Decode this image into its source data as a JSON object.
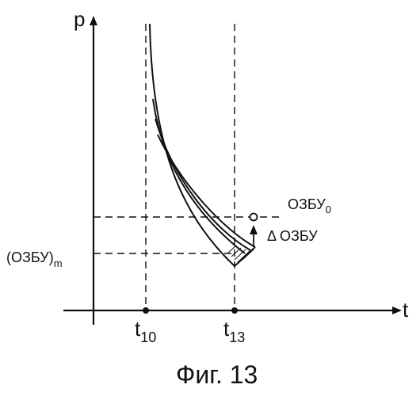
{
  "figure": {
    "y_axis_label": "p",
    "x_axis_label": "t",
    "tick_t10_base": "t",
    "tick_t10_sub": "10",
    "tick_t13_base": "t",
    "tick_t13_sub": "13",
    "ozbu0_base": "ОЗБУ",
    "ozbu0_sub": "0",
    "ozbu_m_base": "(ОЗБУ)",
    "ozbu_m_sub": "m",
    "delta_label": "Δ ОЗБУ",
    "caption": "Фиг. 13"
  }
}
